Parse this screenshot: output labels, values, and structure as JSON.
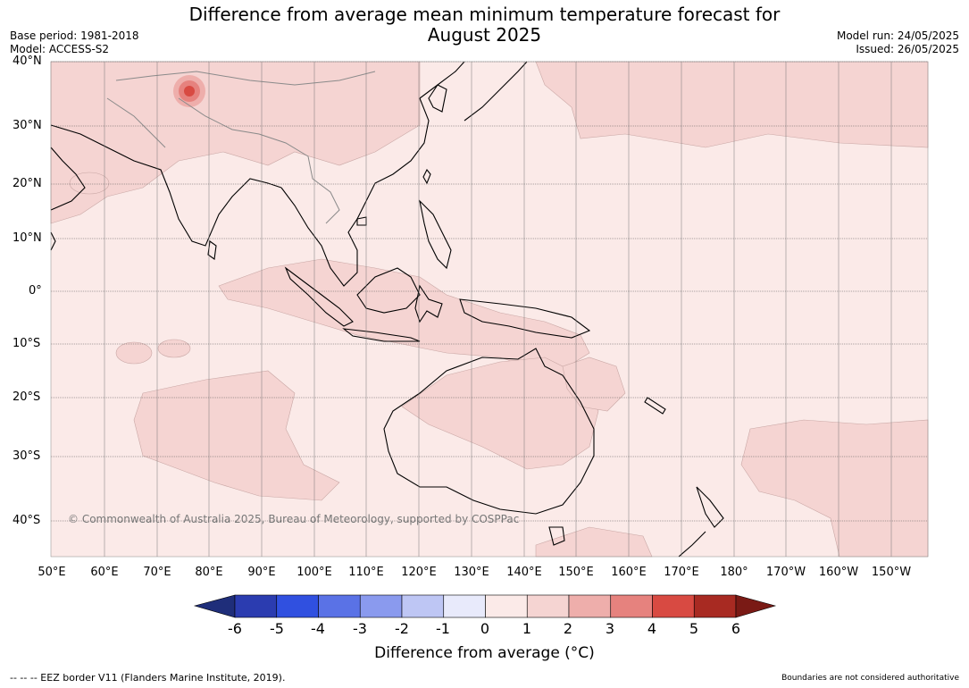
{
  "title_line1": "Difference from average mean minimum temperature forecast for",
  "title_line2": "August 2025",
  "base_period": "Base period: 1981-2018",
  "model": "Model: ACCESS-S2",
  "model_run": "Model run: 24/05/2025",
  "issued": "Issued: 26/05/2025",
  "lat_labels": [
    "40°N",
    "30°N",
    "20°N",
    "10°N",
    "0°",
    "10°S",
    "20°S",
    "30°S",
    "40°S"
  ],
  "lon_labels": [
    "50°E",
    "60°E",
    "70°E",
    "80°E",
    "90°E",
    "100°E",
    "110°E",
    "120°E",
    "130°E",
    "140°E",
    "150°E",
    "160°E",
    "170°E",
    "180°",
    "170°W",
    "160°W",
    "150°W"
  ],
  "copyright": "© Commonwealth of Australia 2025, Bureau of Meteorology, supported by COSPPac",
  "colorbar": {
    "ticks": [
      "-6",
      "-5",
      "-4",
      "-3",
      "-2",
      "-1",
      "0",
      "1",
      "2",
      "3",
      "4",
      "5",
      "6"
    ],
    "colors": [
      "#1f2e7a",
      "#2b3cb0",
      "#3050e0",
      "#5a72e6",
      "#8a9aee",
      "#bec6f4",
      "#e8eafb",
      "#fbeae8",
      "#f5d4d2",
      "#eeaeab",
      "#e6827e",
      "#d84a42",
      "#a82a22",
      "#7a1a15"
    ],
    "label": "Difference from average (°C)"
  },
  "eez_legend": "--  --  -- EEZ border V11 (Flanders Marine Institute, 2019).",
  "boundary_note": "Boundaries are not considered authoritative"
}
